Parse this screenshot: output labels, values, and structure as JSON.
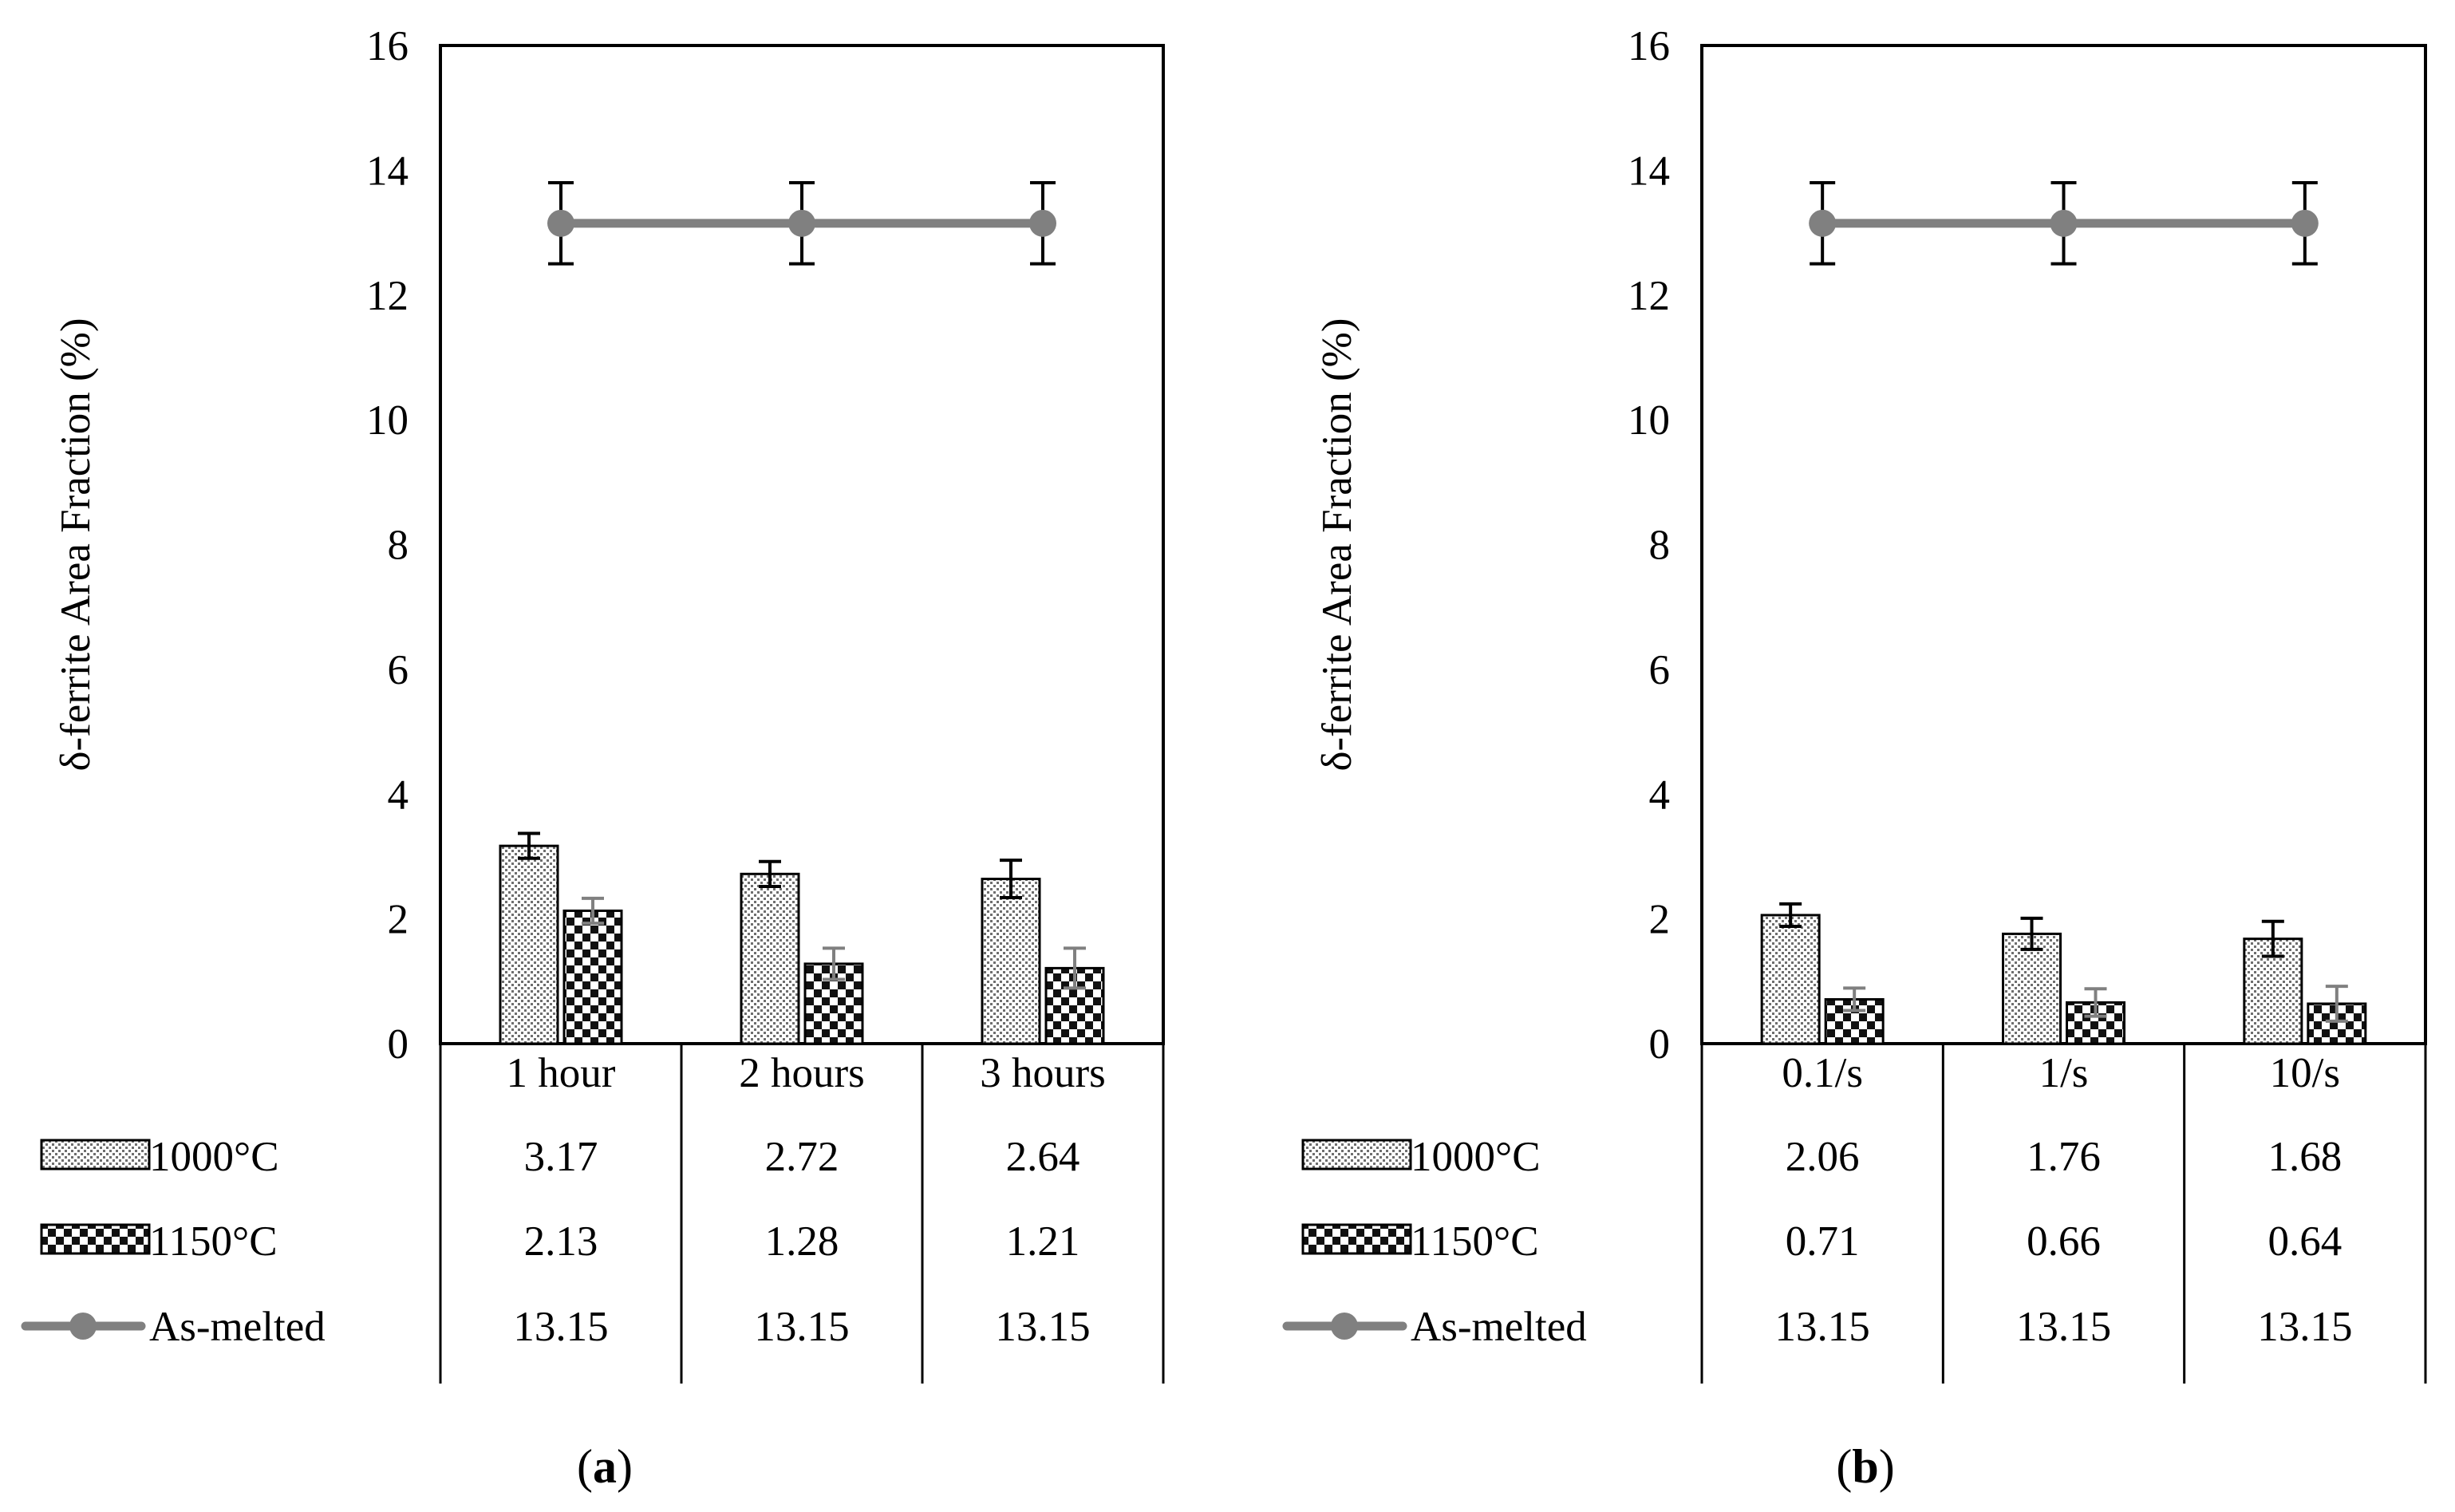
{
  "colors": {
    "as_melted": "#808080",
    "axis": "#000000",
    "error_bar_as_melted": "#000000",
    "error_bar_1150": "#808080"
  },
  "chart_data": [
    {
      "type": "bar",
      "panel_label": "a",
      "ylabel": "δ-ferrite Area Fraction (%)",
      "ylim": [
        0,
        16
      ],
      "yticks": [
        0,
        2,
        4,
        6,
        8,
        10,
        12,
        14,
        16
      ],
      "categories": [
        "1 hour",
        "2 hours",
        "3 hours"
      ],
      "series": [
        {
          "name": "1000°C",
          "kind": "bar",
          "pattern": "dots",
          "values": [
            3.17,
            2.72,
            2.64
          ],
          "labels": [
            "3.17",
            "2.72",
            "2.64"
          ],
          "errors": [
            0.2,
            0.2,
            0.3
          ]
        },
        {
          "name": "1150°C",
          "kind": "bar",
          "pattern": "checker",
          "values": [
            2.13,
            1.28,
            1.21
          ],
          "labels": [
            "2.13",
            "1.28",
            "1.21"
          ],
          "errors": [
            0.2,
            0.25,
            0.32
          ]
        },
        {
          "name": "As-melted",
          "kind": "line",
          "values": [
            13.15,
            13.15,
            13.15
          ],
          "labels": [
            "13.15",
            "13.15",
            "13.15"
          ],
          "errors": [
            0.65,
            0.65,
            0.65
          ]
        }
      ]
    },
    {
      "type": "bar",
      "panel_label": "b",
      "ylabel": "δ-ferrite Area Fraction (%)",
      "ylim": [
        0,
        16
      ],
      "yticks": [
        0,
        2,
        4,
        6,
        8,
        10,
        12,
        14,
        16
      ],
      "categories": [
        "0.1/s",
        "1/s",
        "10/s"
      ],
      "series": [
        {
          "name": "1000°C",
          "kind": "bar",
          "pattern": "dots",
          "values": [
            2.06,
            1.76,
            1.68
          ],
          "labels": [
            "2.06",
            "1.76",
            "1.68"
          ],
          "errors": [
            0.18,
            0.25,
            0.28
          ]
        },
        {
          "name": "1150°C",
          "kind": "bar",
          "pattern": "checker",
          "values": [
            0.71,
            0.66,
            0.64
          ],
          "labels": [
            "0.71",
            "0.66",
            "0.64"
          ],
          "errors": [
            0.18,
            0.22,
            0.28
          ]
        },
        {
          "name": "As-melted",
          "kind": "line",
          "values": [
            13.15,
            13.15,
            13.15
          ],
          "labels": [
            "13.15",
            "13.15",
            "13.15"
          ],
          "errors": [
            0.65,
            0.65,
            0.65
          ]
        }
      ]
    }
  ]
}
